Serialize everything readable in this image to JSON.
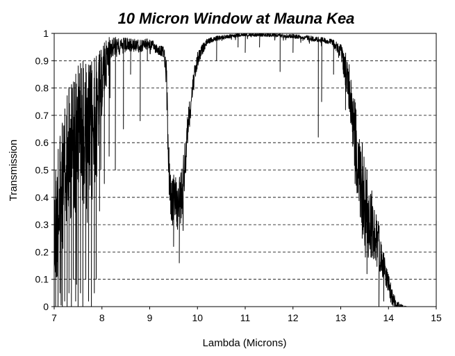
{
  "chart_data": {
    "type": "line",
    "title": "10 Micron Window at Mauna Kea",
    "xlabel": "Lambda (Microns)",
    "ylabel": "Transmission",
    "xlim": [
      7,
      15
    ],
    "ylim": [
      0,
      1
    ],
    "xticks": [
      "7",
      "8",
      "9",
      "10",
      "11",
      "12",
      "13",
      "14",
      "15"
    ],
    "yticks": [
      "0",
      "0.1",
      "0.2",
      "0.3",
      "0.4",
      "0.5",
      "0.6",
      "0.7",
      "0.8",
      "0.9",
      "1"
    ],
    "grid": "horizontal dashed",
    "legend": "none",
    "line_color": "#000000",
    "series": [
      {
        "envelope": [
          [
            7.0,
            0.45
          ],
          [
            7.1,
            0.6
          ],
          [
            7.2,
            0.7
          ],
          [
            7.3,
            0.8
          ],
          [
            7.4,
            0.82
          ],
          [
            7.5,
            0.88
          ],
          [
            7.6,
            0.9
          ],
          [
            7.7,
            0.88
          ],
          [
            7.8,
            0.9
          ],
          [
            7.9,
            0.92
          ],
          [
            8.0,
            0.95
          ],
          [
            8.1,
            0.98
          ],
          [
            8.2,
            0.99
          ],
          [
            8.3,
            0.985
          ],
          [
            8.4,
            0.98
          ],
          [
            8.5,
            0.985
          ],
          [
            8.6,
            0.98
          ],
          [
            8.7,
            0.98
          ],
          [
            8.8,
            0.975
          ],
          [
            8.9,
            0.98
          ],
          [
            9.0,
            0.98
          ],
          [
            9.1,
            0.97
          ],
          [
            9.2,
            0.96
          ],
          [
            9.3,
            0.95
          ],
          [
            9.35,
            0.9
          ],
          [
            9.4,
            0.6
          ],
          [
            9.45,
            0.45
          ],
          [
            9.5,
            0.48
          ],
          [
            9.55,
            0.5
          ],
          [
            9.6,
            0.45
          ],
          [
            9.65,
            0.5
          ],
          [
            9.7,
            0.55
          ],
          [
            9.75,
            0.62
          ],
          [
            9.8,
            0.72
          ],
          [
            9.9,
            0.85
          ],
          [
            10.0,
            0.93
          ],
          [
            10.1,
            0.96
          ],
          [
            10.2,
            0.98
          ],
          [
            10.4,
            0.99
          ],
          [
            10.6,
            0.995
          ],
          [
            10.8,
            0.998
          ],
          [
            11.0,
            1.0
          ],
          [
            11.2,
            1.0
          ],
          [
            11.4,
            1.0
          ],
          [
            11.6,
            1.0
          ],
          [
            11.8,
            0.998
          ],
          [
            12.0,
            0.997
          ],
          [
            12.2,
            0.995
          ],
          [
            12.4,
            0.99
          ],
          [
            12.6,
            0.985
          ],
          [
            12.8,
            0.98
          ],
          [
            12.9,
            0.97
          ],
          [
            13.0,
            0.96
          ],
          [
            13.1,
            0.93
          ],
          [
            13.2,
            0.88
          ],
          [
            13.3,
            0.75
          ],
          [
            13.4,
            0.65
          ],
          [
            13.5,
            0.55
          ],
          [
            13.6,
            0.45
          ],
          [
            13.7,
            0.4
          ],
          [
            13.8,
            0.3
          ],
          [
            13.9,
            0.2
          ],
          [
            14.0,
            0.12
          ],
          [
            14.1,
            0.05
          ],
          [
            14.2,
            0.02
          ],
          [
            14.3,
            0.005
          ],
          [
            14.4,
            0.0
          ]
        ],
        "spread": [
          [
            7.0,
            0.45
          ],
          [
            7.8,
            0.55
          ],
          [
            8.0,
            0.25
          ],
          [
            8.2,
            0.08
          ],
          [
            8.6,
            0.05
          ],
          [
            9.0,
            0.04
          ],
          [
            9.3,
            0.04
          ],
          [
            9.4,
            0.18
          ],
          [
            9.5,
            0.18
          ],
          [
            9.7,
            0.2
          ],
          [
            9.8,
            0.12
          ],
          [
            10.0,
            0.06
          ],
          [
            10.2,
            0.02
          ],
          [
            11.0,
            0.01
          ],
          [
            12.0,
            0.015
          ],
          [
            12.8,
            0.02
          ],
          [
            13.0,
            0.05
          ],
          [
            13.2,
            0.2
          ],
          [
            13.4,
            0.35
          ],
          [
            13.6,
            0.3
          ],
          [
            13.9,
            0.1
          ],
          [
            14.4,
            0.0
          ]
        ],
        "absorption_lines": [
          [
            7.03,
            0.0
          ],
          [
            7.08,
            0.0
          ],
          [
            7.12,
            0.05
          ],
          [
            7.17,
            0.0
          ],
          [
            7.22,
            0.02
          ],
          [
            7.27,
            0.0
          ],
          [
            7.31,
            0.05
          ],
          [
            7.36,
            0.0
          ],
          [
            7.4,
            0.1
          ],
          [
            7.45,
            0.02
          ],
          [
            7.5,
            0.0
          ],
          [
            7.55,
            0.05
          ],
          [
            7.6,
            0.0
          ],
          [
            7.66,
            0.1
          ],
          [
            7.72,
            0.02
          ],
          [
            7.78,
            0.0
          ],
          [
            7.84,
            0.05
          ],
          [
            7.88,
            0.1
          ],
          [
            7.95,
            0.35
          ],
          [
            8.05,
            0.45
          ],
          [
            8.15,
            0.55
          ],
          [
            8.28,
            0.5
          ],
          [
            8.45,
            0.65
          ],
          [
            8.6,
            0.85
          ],
          [
            8.8,
            0.68
          ],
          [
            8.95,
            0.9
          ],
          [
            9.5,
            0.22
          ],
          [
            9.62,
            0.16
          ],
          [
            10.4,
            0.9
          ],
          [
            10.85,
            0.95
          ],
          [
            11.0,
            0.93
          ],
          [
            11.3,
            0.95
          ],
          [
            11.73,
            0.86
          ],
          [
            12.0,
            0.93
          ],
          [
            12.53,
            0.62
          ],
          [
            12.6,
            0.75
          ],
          [
            12.85,
            0.85
          ],
          [
            13.1,
            0.72
          ],
          [
            13.3,
            0.45
          ],
          [
            13.45,
            0.25
          ],
          [
            13.55,
            0.12
          ],
          [
            13.65,
            0.18
          ],
          [
            13.8,
            0.0
          ],
          [
            13.9,
            0.02
          ]
        ]
      }
    ]
  }
}
